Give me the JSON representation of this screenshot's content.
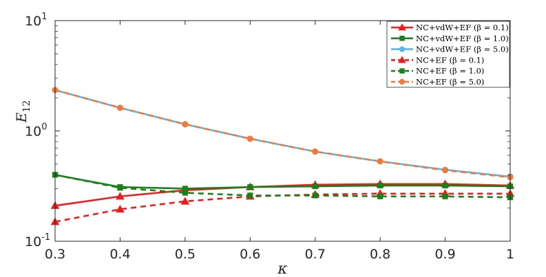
{
  "chart_data": {
    "type": "line",
    "xlabel": "κ",
    "ylabel": "E",
    "ylabel_sub": "12",
    "x": [
      0.3,
      0.4,
      0.5,
      0.6,
      0.7,
      0.8,
      0.9,
      1.0
    ],
    "xlim": [
      0.3,
      1.0
    ],
    "ylim": [
      0.1,
      10
    ],
    "yscale": "log",
    "grid": false,
    "legend_position": "top-right",
    "x_ticks": [
      "0.3",
      "0.4",
      "0.5",
      "0.6",
      "0.7",
      "0.8",
      "0.9",
      "1"
    ],
    "y_ticks": [
      {
        "value": 10,
        "base": "10",
        "exp": "1"
      },
      {
        "value": 1,
        "base": "10",
        "exp": "0"
      },
      {
        "value": 0.1,
        "base": "10",
        "exp": "-1"
      }
    ],
    "series": [
      {
        "name": "NC+vdW+EF (β = 0.1)",
        "color": "#ee1c1c",
        "dash": false,
        "marker": "triangle",
        "values": [
          0.21,
          0.255,
          0.29,
          0.31,
          0.325,
          0.33,
          0.33,
          0.32
        ]
      },
      {
        "name": "NC+vdW+EF (β = 1.0)",
        "color": "#1a801a",
        "dash": false,
        "marker": "square",
        "values": [
          0.4,
          0.31,
          0.3,
          0.31,
          0.315,
          0.32,
          0.32,
          0.315
        ]
      },
      {
        "name": "NC+vdW+EF (β = 5.0)",
        "color": "#5ab4e6",
        "dash": false,
        "marker": "circle",
        "values": [
          2.35,
          1.62,
          1.15,
          0.85,
          0.65,
          0.53,
          0.445,
          0.385
        ]
      },
      {
        "name": "NC+EF (β = 0.1)",
        "color": "#ee1c1c",
        "dash": true,
        "marker": "triangle",
        "values": [
          0.15,
          0.195,
          0.23,
          0.255,
          0.265,
          0.27,
          0.27,
          0.27
        ]
      },
      {
        "name": "NC+EF (β = 1.0)",
        "color": "#1a801a",
        "dash": true,
        "marker": "square",
        "values": [
          0.4,
          0.305,
          0.275,
          0.26,
          0.26,
          0.255,
          0.255,
          0.25
        ]
      },
      {
        "name": "NC+EF (β = 5.0)",
        "color": "#f07a3c",
        "dash": true,
        "marker": "circle",
        "values": [
          2.35,
          1.62,
          1.15,
          0.85,
          0.65,
          0.53,
          0.44,
          0.38
        ]
      }
    ]
  }
}
